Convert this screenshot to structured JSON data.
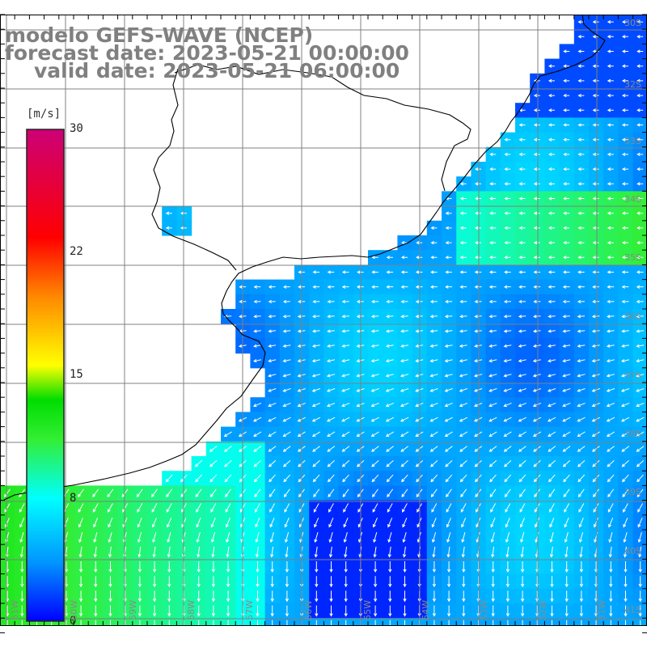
{
  "title": {
    "line1": "modelo GEFS-WAVE (NCEP)",
    "line2": "forecast date: 2023-05-21 00:00:00",
    "line3": "valid date: 2023-05-21 06:00:00"
  },
  "colorbar": {
    "unit": "[m/s]",
    "ticks": [
      "30",
      "22",
      "15",
      "8",
      "0"
    ],
    "stops": [
      "#0000ff",
      "#0096ff",
      "#00ffff",
      "#33ee33",
      "#00dd00",
      "#ffff00",
      "#ff8800",
      "#ff0000",
      "#cc0077"
    ]
  },
  "map": {
    "land_color": "#ffffff",
    "coast_color": "#000000",
    "grid_color": "#808080",
    "vector_color": "#ffffff",
    "lat_labels": [
      "30S",
      "32S",
      "33S",
      "34S",
      "35S",
      "36S",
      "37S",
      "38S",
      "39S",
      "40S",
      "41S"
    ],
    "lon_labels": [
      "61W",
      "60W",
      "59W",
      "58W",
      "57W",
      "56W",
      "55W",
      "54W",
      "53W",
      "52W",
      "51W"
    ]
  }
}
